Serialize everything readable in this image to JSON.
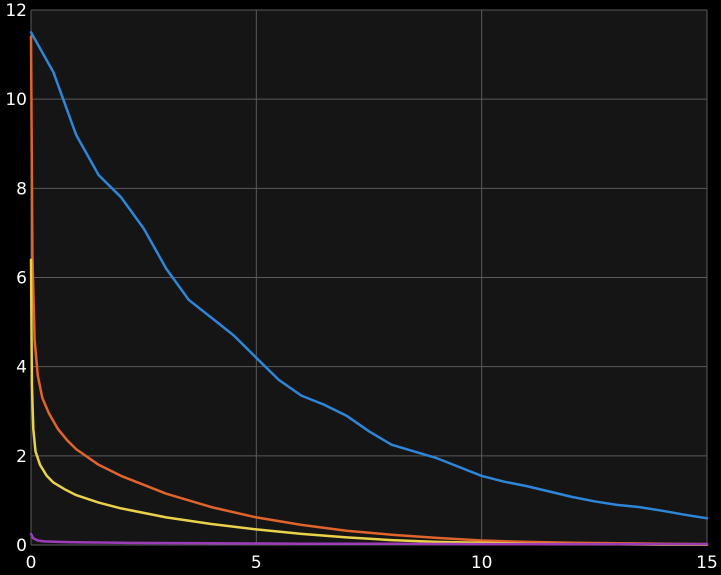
{
  "chart_data": {
    "type": "line",
    "title": "",
    "xlabel": "",
    "ylabel": "",
    "xlim": [
      0,
      15
    ],
    "ylim": [
      0,
      12
    ],
    "grid": true,
    "x_ticks": [
      0,
      5,
      10,
      15
    ],
    "y_ticks": [
      0,
      2,
      4,
      6,
      8,
      10,
      12
    ],
    "x_tick_labels": [
      "0",
      "5",
      "10",
      "15"
    ],
    "y_tick_labels": [
      "0",
      "2",
      "4",
      "6",
      "8",
      "10",
      "12"
    ],
    "colors": {
      "background": "#000000",
      "plot_area": "#151515",
      "grid": "#5a5a5a",
      "text": "#ffffff"
    },
    "series": [
      {
        "color": "#2e86d9",
        "x": [
          0,
          0.5,
          1,
          1.5,
          2,
          2.5,
          3,
          3.5,
          4,
          4.5,
          5,
          5.5,
          6,
          6.5,
          7,
          7.5,
          8,
          8.5,
          9,
          9.5,
          10,
          10.5,
          11,
          11.5,
          12,
          12.5,
          13,
          13.5,
          14,
          14.5,
          15
        ],
        "values": [
          11.5,
          10.6,
          9.2,
          8.3,
          7.8,
          7.1,
          6.2,
          5.5,
          5.1,
          4.7,
          4.2,
          3.7,
          3.35,
          3.15,
          2.9,
          2.55,
          2.25,
          2.1,
          1.95,
          1.75,
          1.55,
          1.42,
          1.32,
          1.2,
          1.08,
          0.98,
          0.9,
          0.85,
          0.77,
          0.68,
          0.6
        ]
      },
      {
        "color": "#e0642c",
        "x": [
          0,
          0.03,
          0.08,
          0.15,
          0.25,
          0.4,
          0.6,
          0.8,
          1,
          1.5,
          2,
          2.5,
          3,
          4,
          5,
          6,
          7,
          8,
          9,
          10,
          11,
          12,
          13,
          14,
          15
        ],
        "values": [
          11.4,
          6.5,
          4.6,
          3.8,
          3.3,
          2.95,
          2.6,
          2.35,
          2.15,
          1.8,
          1.55,
          1.35,
          1.15,
          0.85,
          0.62,
          0.45,
          0.32,
          0.23,
          0.16,
          0.1,
          0.07,
          0.05,
          0.04,
          0.03,
          0.02
        ]
      },
      {
        "color": "#e9d14a",
        "x": [
          0,
          0.02,
          0.05,
          0.1,
          0.2,
          0.35,
          0.5,
          0.75,
          1,
          1.5,
          2,
          3,
          4,
          5,
          6,
          7,
          8,
          9,
          10,
          11,
          12,
          13,
          14,
          15
        ],
        "values": [
          6.4,
          3.6,
          2.6,
          2.1,
          1.8,
          1.55,
          1.4,
          1.25,
          1.12,
          0.95,
          0.82,
          0.62,
          0.47,
          0.35,
          0.25,
          0.17,
          0.11,
          0.07,
          0.05,
          0.03,
          0.02,
          0.015,
          0.01,
          0.01
        ]
      },
      {
        "color": "#9c3cb8",
        "x": [
          0,
          0.05,
          0.15,
          0.3,
          0.6,
          1,
          2,
          4,
          6,
          8,
          10,
          12,
          15
        ],
        "values": [
          0.25,
          0.15,
          0.1,
          0.08,
          0.07,
          0.06,
          0.05,
          0.04,
          0.03,
          0.03,
          0.02,
          0.02,
          0.02
        ]
      }
    ]
  }
}
